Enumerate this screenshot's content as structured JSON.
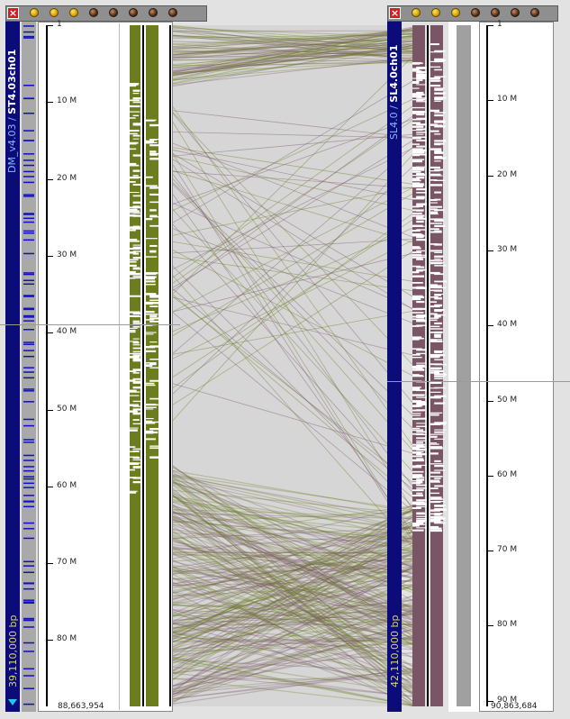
{
  "left_panel": {
    "close_glyph": "×",
    "close_icon": "close-icon",
    "toolbar_buttons": [
      "yellow",
      "yellow",
      "yellow",
      "dark",
      "dark",
      "dark",
      "dark",
      "dark"
    ],
    "assembly_label": "DM_v4.03",
    "separator": " / ",
    "chromosome_label": "ST4.03ch01",
    "length_label": "39,110,000 bp",
    "ruler_ticks": [
      "1",
      "10 M",
      "20 M",
      "30 M",
      "40 M",
      "50 M",
      "60 M",
      "70 M",
      "80 M"
    ],
    "end_label": "88,663,954",
    "colors": {
      "strip": "#0b0b7a",
      "feature": "#6b7d1e"
    }
  },
  "right_panel": {
    "close_glyph": "×",
    "close_icon": "close-icon",
    "toolbar_buttons": [
      "yellow",
      "yellow",
      "yellow",
      "dark",
      "dark",
      "dark",
      "dark"
    ],
    "assembly_label": "SL4.0",
    "separator": " / ",
    "chromosome_label": "SL4.0ch01",
    "length_label": "42,110,000 bp",
    "ruler_ticks": [
      "1",
      "10 M",
      "20 M",
      "30 M",
      "40 M",
      "50 M",
      "60 M",
      "70 M",
      "80 M",
      "90 M"
    ],
    "end_label": "90,863,684",
    "colors": {
      "strip": "#0b0b7a",
      "feature": "#7a5566"
    }
  },
  "expand_icon": "triangle-down-icon",
  "synteny_colors": {
    "left": "#6b7d1e",
    "right": "#7a5566"
  }
}
